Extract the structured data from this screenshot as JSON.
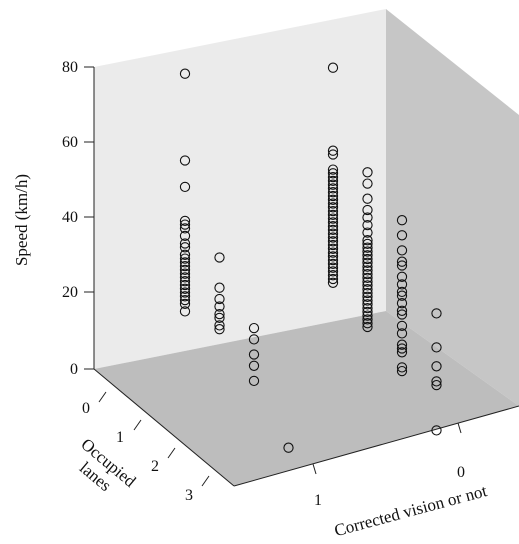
{
  "chart_data": {
    "type": "scatter",
    "projection": "3d",
    "zlabel": "Speed (km/h)",
    "ylabel": "Occupied\nlanes",
    "xlabel": "Corrected vision or not",
    "z_ticks": [
      "0",
      "20",
      "40",
      "60",
      "80"
    ],
    "y_ticks": [
      "0",
      "1",
      "2",
      "3"
    ],
    "x_ticks": [
      "1",
      "0"
    ],
    "zlim": [
      0,
      80
    ],
    "grid": false,
    "colors": {
      "back_wall": "#ebebeb",
      "side_wall": "#c6c6c6",
      "floor": "#bdbdbd",
      "marker": "#111111"
    },
    "series": [
      {
        "corrected_vision": 1,
        "occupied_lanes": 0,
        "speeds": [
          78,
          55,
          48,
          39,
          38,
          37,
          35,
          33,
          32,
          30,
          29,
          28,
          27,
          26,
          25,
          24,
          23,
          22,
          21,
          20,
          19,
          18,
          17,
          15
        ]
      },
      {
        "corrected_vision": 1,
        "occupied_lanes": 1,
        "speeds": [
          33,
          25,
          22,
          20,
          18,
          17,
          15,
          14
        ]
      },
      {
        "corrected_vision": 1,
        "occupied_lanes": 2,
        "speeds": [
          18,
          15,
          11,
          8,
          4
        ]
      },
      {
        "corrected_vision": 1,
        "occupied_lanes": 3,
        "speeds": [
          -10
        ]
      },
      {
        "corrected_vision": 0,
        "occupied_lanes": 0,
        "speeds": [
          78,
          56,
          55,
          51,
          50,
          49,
          48,
          47,
          46,
          45,
          44,
          43,
          42,
          41,
          40,
          39,
          38,
          37,
          36,
          35,
          34,
          33,
          32,
          31,
          30,
          29,
          28,
          27,
          26,
          25,
          24,
          23,
          22,
          21
        ]
      },
      {
        "corrected_vision": 0,
        "occupied_lanes": 1,
        "speeds": [
          54,
          51,
          47,
          44,
          42,
          40,
          38,
          36,
          35,
          34,
          33,
          32,
          31,
          30,
          29,
          28,
          27,
          26,
          25,
          24,
          23,
          22,
          21,
          20,
          19,
          18,
          17,
          16,
          15,
          14,
          13
        ]
      },
      {
        "corrected_vision": 0,
        "occupied_lanes": 2,
        "speeds": [
          45,
          41,
          37,
          34,
          33,
          30,
          28,
          26,
          25,
          23,
          21,
          20,
          17,
          15,
          12,
          11,
          10,
          6,
          5
        ]
      },
      {
        "corrected_vision": 0,
        "occupied_lanes": 3,
        "speeds": [
          24,
          15,
          10,
          6,
          5,
          -7
        ]
      }
    ]
  }
}
